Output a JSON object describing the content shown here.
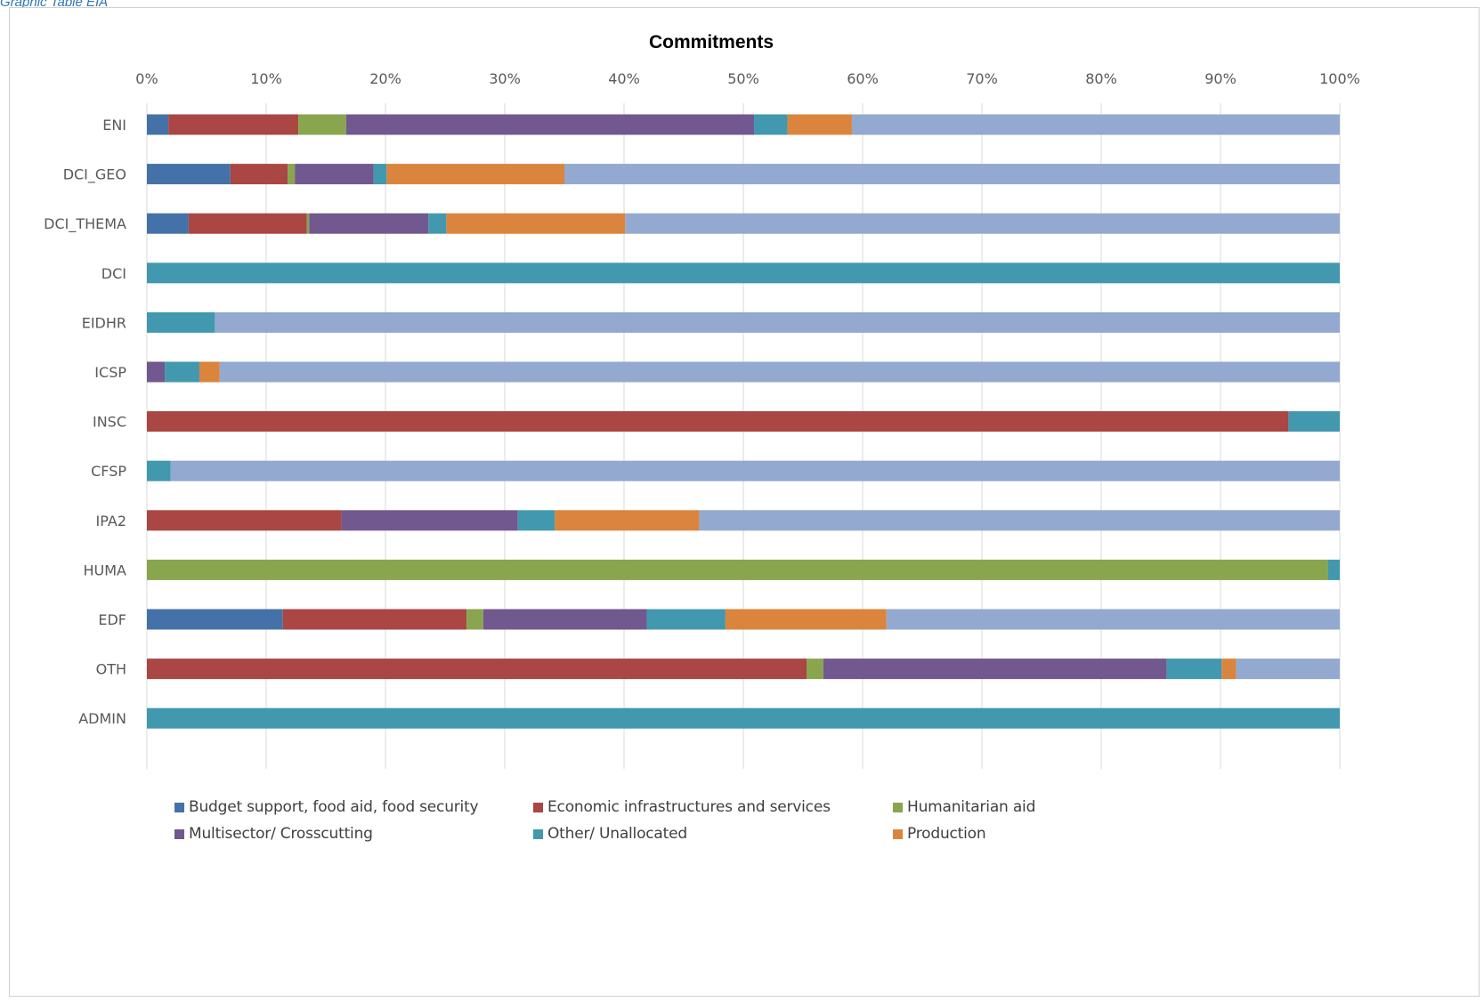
{
  "caption": "Graphic Table EIA",
  "chart_data": {
    "type": "bar",
    "orientation": "horizontal",
    "stacked": "percent",
    "title": "Commitments",
    "xlabel": "",
    "ylabel": "",
    "xlim": [
      0,
      100
    ],
    "x_ticks": [
      "0%",
      "10%",
      "20%",
      "30%",
      "40%",
      "50%",
      "60%",
      "70%",
      "80%",
      "90%",
      "100%"
    ],
    "grid": true,
    "legend_position": "bottom",
    "categories": [
      "ENI",
      "DCI_GEO",
      "DCI_THEMA",
      "DCI",
      "EIDHR",
      "ICSP",
      "INSC",
      "CFSP",
      "IPA2",
      "HUMA",
      "EDF",
      "OTH",
      "ADMIN"
    ],
    "series": [
      {
        "name": "Budget support, food aid, food security",
        "color": "#4472a8",
        "values": [
          1.8,
          7.0,
          3.5,
          0,
          0,
          0,
          0,
          0,
          0,
          0,
          11.4,
          0,
          0
        ]
      },
      {
        "name": "Economic infrastructures and services",
        "color": "#aa4643",
        "values": [
          10.9,
          4.8,
          9.9,
          0,
          0,
          0,
          95.7,
          0,
          16.3,
          0,
          15.4,
          55.3,
          0
        ]
      },
      {
        "name": "Humanitarian aid",
        "color": "#89a54e",
        "values": [
          4.0,
          0.6,
          0.2,
          0,
          0,
          0,
          0,
          0,
          0,
          99.0,
          1.4,
          1.4,
          0
        ]
      },
      {
        "name": "Multisector/ Crosscutting",
        "color": "#71588f",
        "values": [
          34.2,
          6.6,
          10.0,
          0,
          0,
          1.5,
          0,
          0,
          14.8,
          0,
          13.7,
          28.8,
          0
        ]
      },
      {
        "name": "Other/ Unallocated",
        "color": "#4198af",
        "values": [
          2.8,
          1.1,
          1.5,
          100,
          5.7,
          2.9,
          4.3,
          2.0,
          3.1,
          1.0,
          6.6,
          4.6,
          100
        ]
      },
      {
        "name": "Production",
        "color": "#db843d",
        "values": [
          5.4,
          14.9,
          15.0,
          0,
          0,
          1.7,
          0,
          0,
          12.1,
          0,
          13.5,
          1.2,
          0
        ]
      },
      {
        "name": "",
        "color": "#93a9cf",
        "values": [
          40.9,
          65.0,
          59.9,
          0,
          94.3,
          93.9,
          0,
          98.0,
          53.7,
          0,
          38.0,
          8.7,
          0
        ]
      }
    ],
    "legend_entries": [
      {
        "label": "Budget support, food aid, food security",
        "color": "#4472a8"
      },
      {
        "label": "Economic infrastructures and services",
        "color": "#aa4643"
      },
      {
        "label": "Humanitarian aid",
        "color": "#89a54e"
      },
      {
        "label": "Multisector/ Crosscutting",
        "color": "#71588f"
      },
      {
        "label": "Other/ Unallocated",
        "color": "#4198af"
      },
      {
        "label": "Production",
        "color": "#db843d"
      }
    ]
  }
}
